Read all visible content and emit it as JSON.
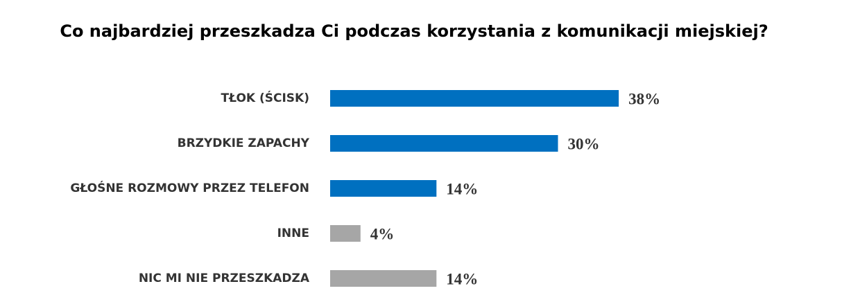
{
  "chart_data": {
    "type": "bar",
    "title": "Co najbardziej przeszkadza Ci podczas korzystania z komunikacji miejskiej?",
    "categories": [
      "TŁOK (ŚCISK)",
      "BRZYDKIE ZAPACHY",
      "GŁOŚNE ROZMOWY PRZEZ TELEFON",
      "INNE",
      "NIC MI NIE PRZESZKADZA"
    ],
    "values": [
      38,
      30,
      14,
      4,
      14
    ],
    "value_labels": [
      "38%",
      "30%",
      "14%",
      "4%",
      "14%"
    ],
    "colors": [
      "#0070c0",
      "#0070c0",
      "#0070c0",
      "#a6a6a6",
      "#a6a6a6"
    ]
  }
}
